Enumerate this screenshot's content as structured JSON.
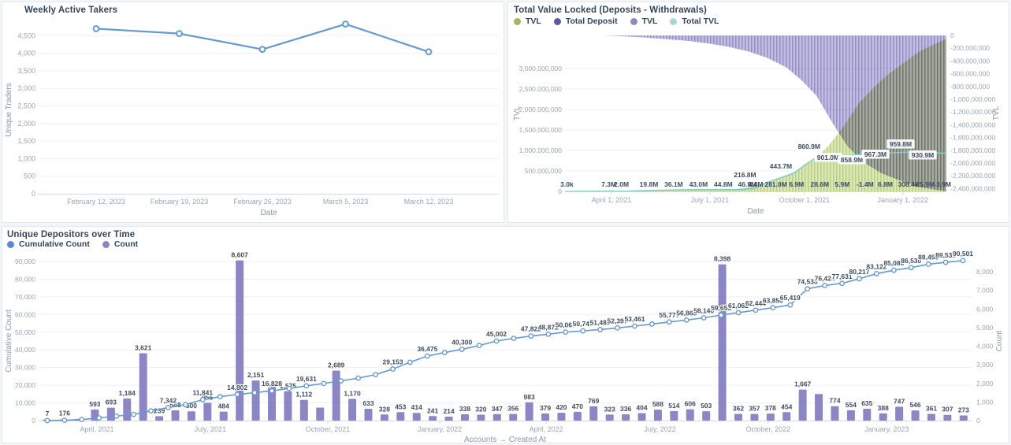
{
  "cards": {
    "takers": {
      "title": "Weekly Active Takers"
    },
    "tvl": {
      "title": "Total Value Locked (Deposits - Withdrawals)",
      "legend": [
        {
          "label": "TVL",
          "color": "#a9b166"
        },
        {
          "label": "Total Deposit",
          "color": "#5e58a0"
        },
        {
          "label": "TVL",
          "color": "#908bbe"
        },
        {
          "label": "Total TVL",
          "color": "#a9d7d3"
        }
      ]
    },
    "depositors": {
      "title": "Unique Depositors over Time",
      "legend": [
        {
          "label": "Cumulative Count",
          "color": "#6188cf"
        },
        {
          "label": "Count",
          "color": "#8d86c3"
        }
      ]
    }
  },
  "chart_data": [
    {
      "id": "weekly_active_takers",
      "type": "line",
      "title": "Weekly Active Takers",
      "xlabel": "Date",
      "ylabel": "Unique Traders",
      "categories": [
        "February 12, 2023",
        "February 19, 2023",
        "February 26, 2023",
        "March 5, 2023",
        "March 12, 2023"
      ],
      "values": [
        4700,
        4560,
        4110,
        4830,
        4040
      ],
      "yticks": {
        "min": 0,
        "max": 4500,
        "step": 500
      },
      "ylim": [
        0,
        4750
      ],
      "grid": true,
      "line_color": "#6699cc"
    },
    {
      "id": "total_value_locked",
      "type": "area",
      "title": "Total Value Locked (Deposits - Withdrawals)",
      "xlabel": "Date",
      "ylabel_left": "TVL",
      "ylabel_right": "TVL",
      "left_ticks": {
        "min": 0,
        "max": 3000000000,
        "step": 500000000
      },
      "right_ticks": {
        "from": 0,
        "to": -2400000000,
        "step": -200000000
      },
      "xticks": [
        {
          "t": 0.122,
          "label": "April 1, 2021"
        },
        {
          "t": 0.38,
          "label": "July 1, 2021"
        },
        {
          "t": 0.628,
          "label": "October 1, 2021"
        },
        {
          "t": 0.886,
          "label": "January 1, 2022"
        }
      ],
      "series": [
        {
          "name": "TVL",
          "axis": "left",
          "kind": "striped-area",
          "color": "#dce7b8",
          "stripe": "#b9d083",
          "points": [
            [
              0,
              2000000
            ],
            [
              0.1,
              4000000
            ],
            [
              0.2,
              10000000
            ],
            [
              0.3,
              30000000
            ],
            [
              0.38,
              45000000
            ],
            [
              0.44,
              47000000
            ],
            [
              0.48,
              100000000
            ],
            [
              0.52,
              190000000
            ],
            [
              0.57,
              330000000
            ],
            [
              0.61,
              520000000
            ],
            [
              0.65,
              750000000
            ],
            [
              0.69,
              1100000000
            ],
            [
              0.73,
              1580000000
            ],
            [
              0.77,
              2150000000
            ],
            [
              0.81,
              2540000000
            ],
            [
              0.85,
              2880000000
            ],
            [
              0.89,
              3150000000
            ],
            [
              0.93,
              3420000000
            ],
            [
              0.97,
              3600000000
            ],
            [
              1,
              3730000000
            ]
          ]
        },
        {
          "name": "Total Deposit",
          "axis": "right",
          "kind": "striped-area-from-top",
          "color": "#bcb8de",
          "stripe": "#8d88c2",
          "points": [
            [
              0,
              0
            ],
            [
              0.1,
              0
            ],
            [
              0.14,
              -10000000
            ],
            [
              0.2,
              -30000000
            ],
            [
              0.27,
              -60000000
            ],
            [
              0.33,
              -90000000
            ],
            [
              0.38,
              -130000000
            ],
            [
              0.43,
              -180000000
            ],
            [
              0.48,
              -250000000
            ],
            [
              0.53,
              -350000000
            ],
            [
              0.58,
              -500000000
            ],
            [
              0.62,
              -700000000
            ],
            [
              0.66,
              -950000000
            ],
            [
              0.7,
              -1360000000
            ],
            [
              0.74,
              -1730000000
            ],
            [
              0.78,
              -1980000000
            ],
            [
              0.83,
              -2160000000
            ],
            [
              0.88,
              -2280000000
            ],
            [
              0.93,
              -2380000000
            ],
            [
              1,
              -2450000000
            ]
          ]
        },
        {
          "name": "Total TVL",
          "axis": "left",
          "kind": "line",
          "color": "#7fccc8",
          "points": [
            [
              0,
              3000
            ],
            [
              0.08,
              3000000
            ],
            [
              0.115,
              7300000
            ],
            [
              0.148,
              2000000
            ],
            [
              0.22,
              19800000
            ],
            [
              0.285,
              36100000
            ],
            [
              0.35,
              43000000
            ],
            [
              0.415,
              44800000
            ],
            [
              0.47,
              46900000
            ],
            [
              0.5,
              80000000
            ],
            [
              0.53,
              216800000
            ],
            [
              0.6,
              443700000
            ],
            [
              0.63,
              650000000
            ],
            [
              0.665,
              860900000
            ],
            [
              0.7,
              901000000
            ],
            [
              0.74,
              858900000
            ],
            [
              0.78,
              920000000
            ],
            [
              0.82,
              967300000
            ],
            [
              0.86,
              940000000
            ],
            [
              0.9,
              959800000
            ],
            [
              0.95,
              945000000
            ],
            [
              1,
              930900000
            ]
          ]
        }
      ],
      "annotations": [
        {
          "t": 0.005,
          "y": 234,
          "text": "3.0k"
        },
        {
          "t": 0.115,
          "y": 234,
          "text": "7.3M"
        },
        {
          "t": 0.148,
          "y": 234,
          "text": "2.0M"
        },
        {
          "t": 0.22,
          "y": 234,
          "text": "19.8M"
        },
        {
          "t": 0.285,
          "y": 234,
          "text": "36.1M"
        },
        {
          "t": 0.35,
          "y": 234,
          "text": "43.0M"
        },
        {
          "t": 0.415,
          "y": 234,
          "text": "44.8M"
        },
        {
          "t": 0.478,
          "y": 234,
          "text": "46.9M"
        },
        {
          "t": 0.472,
          "y": 222,
          "text": "216.8M"
        },
        {
          "t": 0.5,
          "y": 234,
          "text": "4.4M"
        },
        {
          "t": 0.553,
          "y": 234,
          "text": "281.0M"
        },
        {
          "t": 0.607,
          "y": 234,
          "text": "6.9M"
        },
        {
          "t": 0.668,
          "y": 234,
          "text": "28.6M"
        },
        {
          "t": 0.727,
          "y": 234,
          "text": "5.9M"
        },
        {
          "t": 0.787,
          "y": 234,
          "text": "-1.4M"
        },
        {
          "t": 0.84,
          "y": 234,
          "text": "6.8M"
        },
        {
          "t": 0.9,
          "y": 234,
          "text": "308.4k"
        },
        {
          "t": 0.942,
          "y": 234,
          "text": "-25.9M"
        },
        {
          "t": 0.99,
          "y": 234,
          "text": "-3.9M"
        },
        {
          "t": 0.566,
          "y": 211,
          "text": "443.7M",
          "boxed": true
        },
        {
          "t": 0.64,
          "y": 186,
          "text": "860.9M",
          "boxed": true
        },
        {
          "t": 0.69,
          "y": 200,
          "text": "901.0M",
          "boxed": true
        },
        {
          "t": 0.752,
          "y": 203,
          "text": "858.9M",
          "boxed": true
        },
        {
          "t": 0.814,
          "y": 196,
          "text": "967.3M",
          "boxed": true
        },
        {
          "t": 0.88,
          "y": 183,
          "text": "959.8M",
          "boxed": true
        },
        {
          "t": 0.938,
          "y": 197,
          "text": "930.9M",
          "boxed": true
        }
      ]
    },
    {
      "id": "unique_depositors_over_time",
      "type": "bar",
      "title": "Unique Depositors over Time",
      "xlabel": "Accounts → Created At",
      "ylabel_left": "Cumulative Count",
      "ylabel_right": "Count",
      "left_ticks": {
        "min": 0,
        "max": 90000,
        "step": 10000
      },
      "right_ticks": {
        "min": 0,
        "max": 8000,
        "step": 1000
      },
      "xticks": [
        {
          "t": 0.0625,
          "label": "April, 2021"
        },
        {
          "t": 0.184,
          "label": "July, 2021"
        },
        {
          "t": 0.31,
          "label": "October, 2021"
        },
        {
          "t": 0.43,
          "label": "January, 2022"
        },
        {
          "t": 0.544,
          "label": "April, 2022"
        },
        {
          "t": 0.666,
          "label": "July, 2022"
        },
        {
          "t": 0.782,
          "label": "October, 2022"
        },
        {
          "t": 0.909,
          "label": "January, 2023"
        }
      ],
      "bar_color": "#8d86c4",
      "line_color": "#6699cc",
      "bars": [
        [
          12,
          ""
        ],
        [
          45,
          ""
        ],
        [
          90,
          ""
        ],
        [
          593,
          "593"
        ],
        [
          693,
          "693"
        ],
        [
          1184,
          "1,184"
        ],
        [
          3621,
          "3,621"
        ],
        [
          239,
          "239"
        ],
        [
          548,
          "548"
        ],
        [
          500,
          "500"
        ],
        [
          955,
          "955"
        ],
        [
          484,
          "484"
        ],
        [
          8607,
          "8,607"
        ],
        [
          2151,
          "2,151"
        ],
        [
          2000,
          ""
        ],
        [
          1575,
          "1,575"
        ],
        [
          1112,
          "1,112"
        ],
        [
          700,
          ""
        ],
        [
          2689,
          "2,689"
        ],
        [
          1170,
          "1,170"
        ],
        [
          633,
          "633"
        ],
        [
          328,
          "328"
        ],
        [
          453,
          "453"
        ],
        [
          414,
          "414"
        ],
        [
          241,
          "241"
        ],
        [
          214,
          "214"
        ],
        [
          338,
          "338"
        ],
        [
          320,
          "320"
        ],
        [
          347,
          "347"
        ],
        [
          356,
          "356"
        ],
        [
          983,
          "983"
        ],
        [
          379,
          "379"
        ],
        [
          420,
          "420"
        ],
        [
          470,
          "470"
        ],
        [
          769,
          "769"
        ],
        [
          323,
          "323"
        ],
        [
          336,
          "336"
        ],
        [
          404,
          "404"
        ],
        [
          588,
          "588"
        ],
        [
          514,
          "514"
        ],
        [
          606,
          "606"
        ],
        [
          503,
          "503"
        ],
        [
          8398,
          "8,398"
        ],
        [
          362,
          "362"
        ],
        [
          357,
          "357"
        ],
        [
          378,
          "378"
        ],
        [
          454,
          "454"
        ],
        [
          1667,
          "1,667"
        ],
        [
          1430,
          ""
        ],
        [
          774,
          "774"
        ],
        [
          554,
          "554"
        ],
        [
          635,
          "635"
        ],
        [
          388,
          "388"
        ],
        [
          747,
          "747"
        ],
        [
          546,
          "546"
        ],
        [
          361,
          "361"
        ],
        [
          307,
          "307"
        ],
        [
          273,
          "273"
        ]
      ],
      "line": [
        [
          7,
          "7"
        ],
        [
          176,
          "176"
        ],
        [
          600,
          ""
        ],
        [
          1500,
          ""
        ],
        [
          2500,
          ""
        ],
        [
          3500,
          ""
        ],
        [
          5500,
          ""
        ],
        [
          7342,
          "7,342"
        ],
        [
          9000,
          ""
        ],
        [
          11841,
          "11,841"
        ],
        [
          13500,
          ""
        ],
        [
          14802,
          "14,802"
        ],
        [
          15800,
          ""
        ],
        [
          16828,
          "16,828"
        ],
        [
          18200,
          ""
        ],
        [
          19631,
          "19,631"
        ],
        [
          21000,
          ""
        ],
        [
          22500,
          ""
        ],
        [
          24000,
          ""
        ],
        [
          26000,
          ""
        ],
        [
          29153,
          "29,153"
        ],
        [
          33000,
          ""
        ],
        [
          36475,
          "36,475"
        ],
        [
          38500,
          ""
        ],
        [
          40300,
          "40,300"
        ],
        [
          42500,
          ""
        ],
        [
          45002,
          "45,002"
        ],
        [
          46500,
          ""
        ],
        [
          47822,
          "47,822"
        ],
        [
          48872,
          "48,872"
        ],
        [
          50067,
          "50,067"
        ],
        [
          50740,
          "50,740"
        ],
        [
          51489,
          "51,489"
        ],
        [
          52397,
          "52,397"
        ],
        [
          53461,
          "53,461"
        ],
        [
          54600,
          ""
        ],
        [
          55777,
          "55,777"
        ],
        [
          56868,
          "56,868"
        ],
        [
          58146,
          "58,146"
        ],
        [
          59653,
          "59,653"
        ],
        [
          61062,
          "61,062"
        ],
        [
          62444,
          "62,444"
        ],
        [
          63850,
          "63,850"
        ],
        [
          65419,
          "65,419"
        ],
        [
          74538,
          "74,538"
        ],
        [
          76424,
          "76,424"
        ],
        [
          77631,
          "77,631"
        ],
        [
          80217,
          "80,217"
        ],
        [
          83122,
          "83,122"
        ],
        [
          85080,
          "85,080"
        ],
        [
          86530,
          "86,530"
        ],
        [
          88459,
          "88,459"
        ],
        [
          89536,
          "89,536"
        ],
        [
          90501,
          "90,501"
        ]
      ]
    }
  ],
  "colors": {
    "title_text": "#33475b",
    "tick_text": "#9aa5b1",
    "axis_title_text": "#8b97a6",
    "grid": "#f0f1f4",
    "axis_line": "#d2d7dd",
    "data_label_text": "#3d4c5e"
  }
}
